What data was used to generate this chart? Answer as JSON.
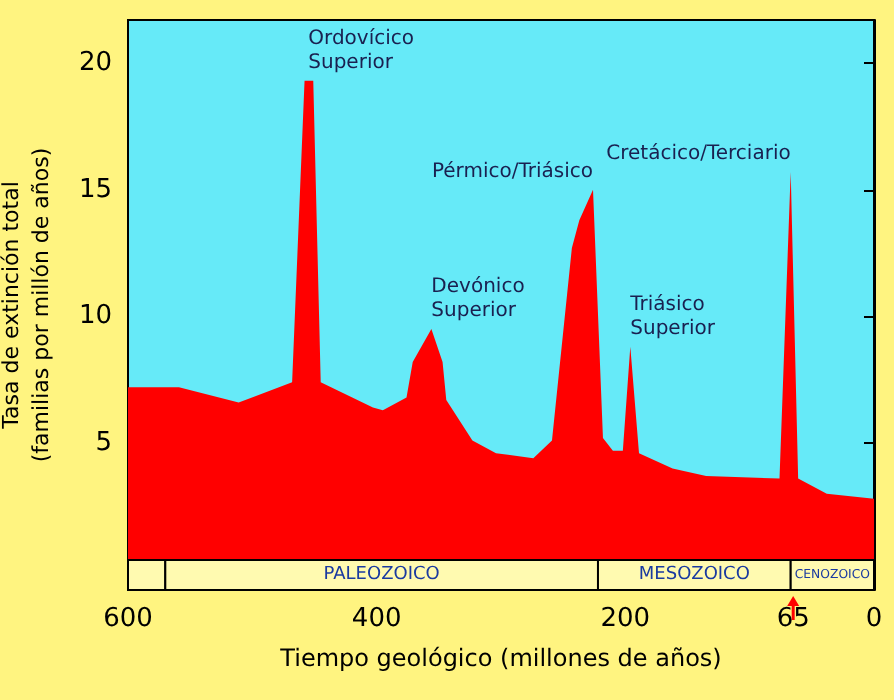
{
  "chart_data": {
    "type": "area",
    "xlabel": "Tiempo geológico (millones de años)",
    "ylabel": "Tasa de extinción total\n(familias por millón de años)",
    "series": [
      {
        "color": "#ff0000",
        "x": [
          600,
          559,
          511,
          468,
          458,
          455,
          451,
          445,
          403,
          395,
          376,
          371,
          356,
          347,
          344,
          323,
          304,
          274,
          259,
          243,
          237,
          226,
          218,
          210,
          202,
          196,
          189,
          162,
          135,
          76,
          67,
          61,
          38,
          0
        ],
        "values": [
          7.2,
          7.2,
          6.6,
          7.4,
          19.3,
          19.3,
          19.3,
          7.4,
          6.4,
          6.3,
          6.8,
          8.2,
          9.5,
          8.2,
          6.7,
          5.1,
          4.6,
          4.4,
          5.1,
          12.7,
          13.8,
          15.0,
          5.2,
          4.7,
          4.7,
          8.8,
          4.6,
          4.0,
          3.7,
          3.6,
          15.7,
          3.6,
          3.0,
          2.8
        ]
      }
    ],
    "xlim": [
      600,
      0
    ],
    "xticks": [
      600,
      {
        "value": 500,
        "label": null
      },
      400,
      {
        "value": 300,
        "label": null
      },
      200,
      {
        "value": 100,
        "label": null
      },
      65,
      0
    ],
    "ylim": [
      -0.8,
      21.7
    ],
    "yticks": [
      5,
      10,
      15,
      20
    ],
    "bands": [
      {
        "axis": "x",
        "from": 600,
        "to": 570,
        "color": "#fffab0"
      },
      {
        "axis": "x",
        "from": 570,
        "to": 222,
        "label": "PALEOZOICO",
        "color": "#fffab0"
      },
      {
        "axis": "x",
        "from": 222,
        "to": 67,
        "label": "MESOZOICO",
        "color": "#fffab0"
      },
      {
        "axis": "x",
        "from": 67,
        "to": 0,
        "label": "CENOZOICO",
        "color": "#fffab0"
      }
    ],
    "annotations": [
      {
        "text": "Ordovícico\nSuperior",
        "x": 455,
        "y": 19.3
      },
      {
        "text": "Pérmico/Triásico",
        "x": 226,
        "y": 15.0
      },
      {
        "text": "Devónico\nSuperior",
        "x": 356,
        "y": 9.5
      },
      {
        "text": "Triásico\nSuperior",
        "x": 196,
        "y": 8.8
      },
      {
        "text": "Cretácico/Terciario",
        "x": 67,
        "y": 15.7
      }
    ]
  }
}
